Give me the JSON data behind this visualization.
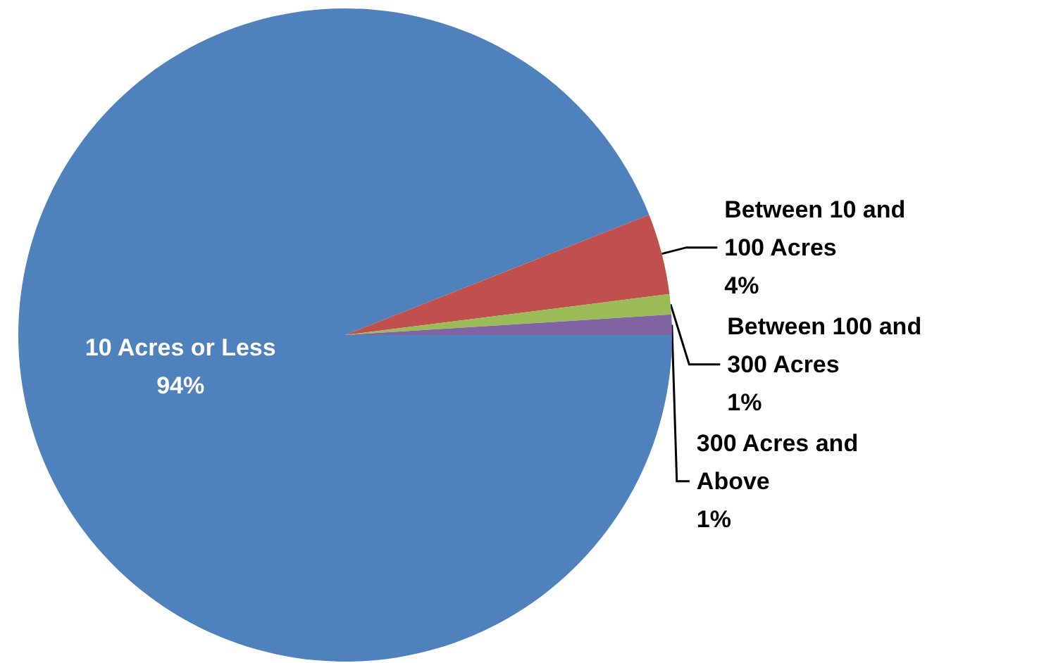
{
  "chart_data": {
    "type": "pie",
    "categories": [
      "10 Acres or Less",
      "Between 10 and 100 Acres",
      "Between 100 and 300 Acres",
      "300 Acres and Above"
    ],
    "values": [
      94,
      4,
      1,
      1
    ],
    "value_labels": [
      "94%",
      "4%",
      "1%",
      "1%"
    ],
    "colors": [
      "#4f81bd",
      "#c0504d",
      "#9bbb59",
      "#8064a2"
    ],
    "legend": false
  }
}
